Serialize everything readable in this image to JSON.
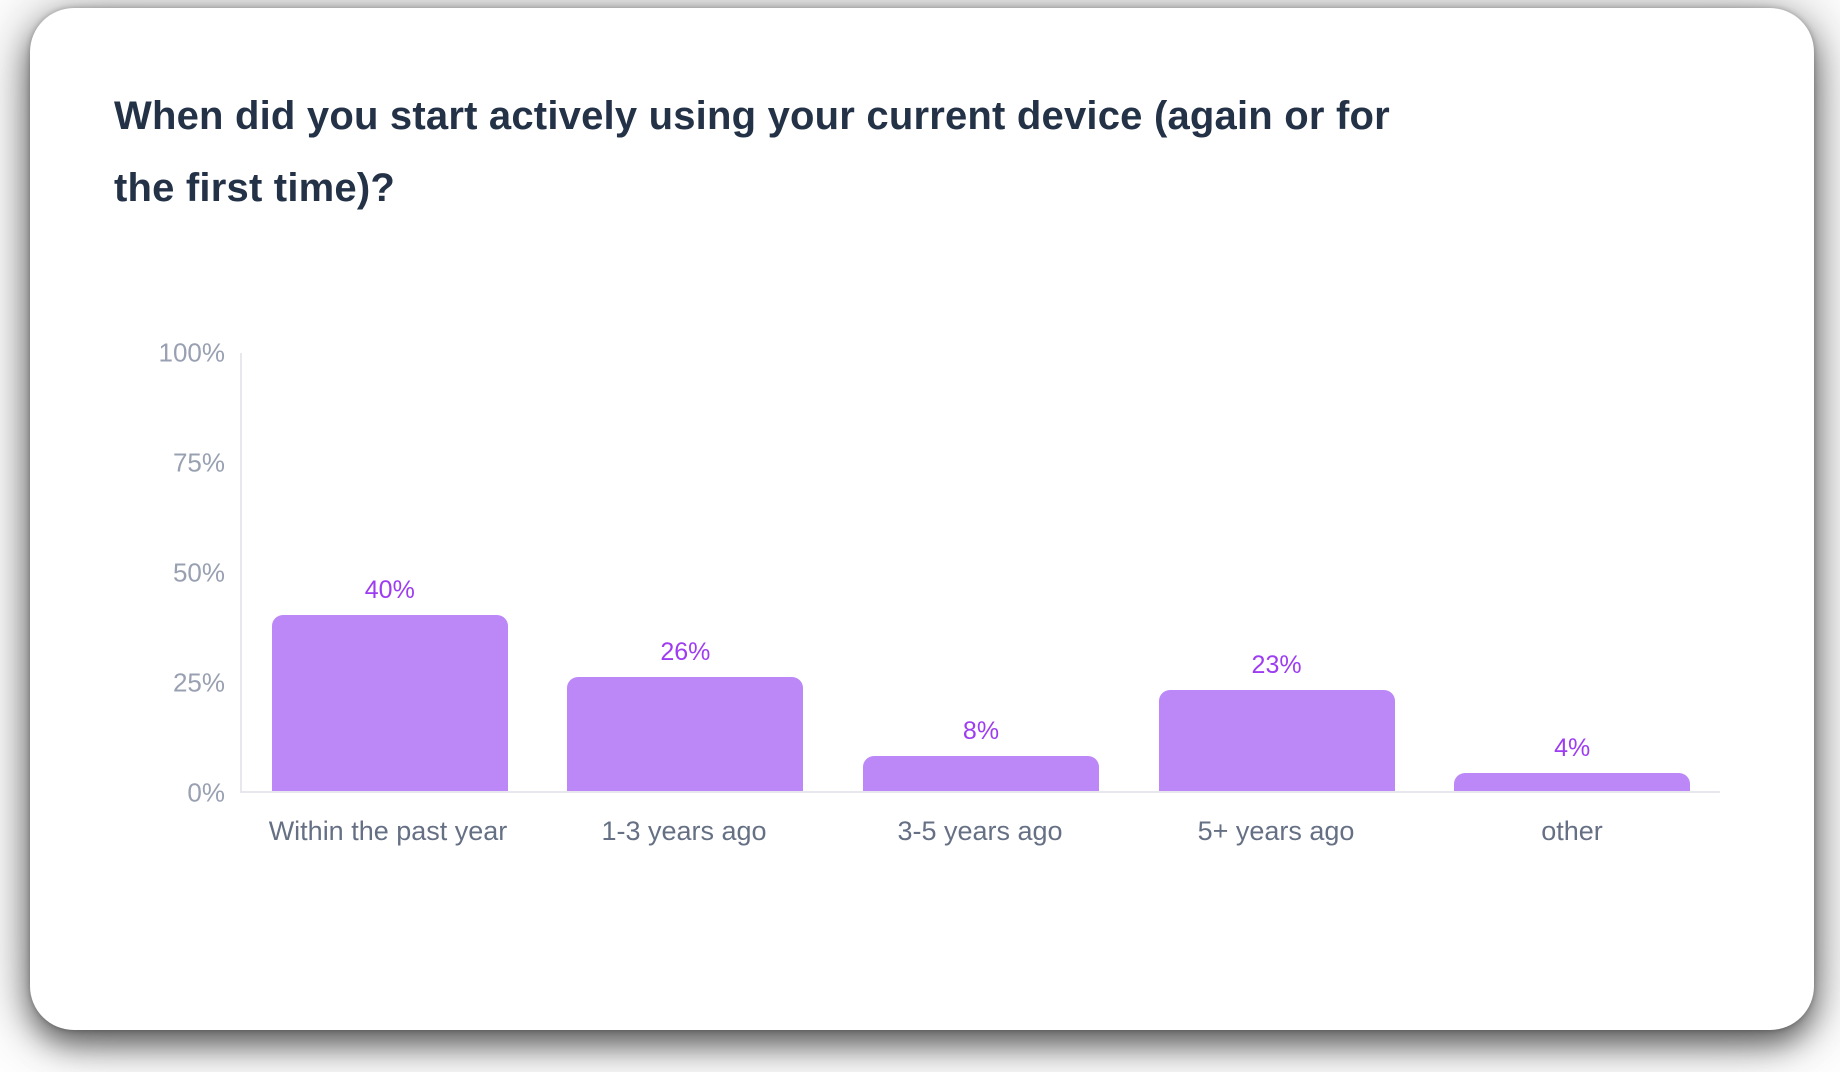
{
  "card": {
    "background": "#ffffff"
  },
  "colors": {
    "bar_fill": "#bc88f8",
    "value_label": "#9d3cf1",
    "axis_line": "#e8e7ee",
    "tick_text": "#98a0b2",
    "category_text": "#667085",
    "title_text": "#243247"
  },
  "chart_data": {
    "type": "bar",
    "title": "When did you start actively using your current device (again or for the first time)?",
    "categories": [
      "Within the past year",
      "1-3 years ago",
      "3-5 years ago",
      "5+ years ago",
      "other"
    ],
    "values": [
      40,
      26,
      8,
      23,
      4
    ],
    "value_labels": [
      "40%",
      "26%",
      "8%",
      "23%",
      "4%"
    ],
    "xlabel": "",
    "ylabel": "",
    "ylim": [
      0,
      100
    ],
    "yticks": [
      {
        "value": 0,
        "label": "0%"
      },
      {
        "value": 25,
        "label": "25%"
      },
      {
        "value": 50,
        "label": "50%"
      },
      {
        "value": 75,
        "label": "75%"
      },
      {
        "value": 100,
        "label": "100%"
      }
    ],
    "grid": false,
    "legend": "none",
    "bar_corner_radius_px": 11
  }
}
